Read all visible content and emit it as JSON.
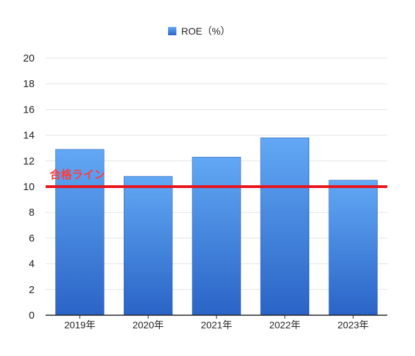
{
  "chart_data": {
    "type": "bar",
    "categories": [
      "2019年",
      "2020年",
      "2021年",
      "2022年",
      "2023年"
    ],
    "series": [
      {
        "name": "ROE（%）",
        "values": [
          12.9,
          10.8,
          12.3,
          13.8,
          10.5
        ]
      }
    ],
    "ylim": [
      0,
      20
    ],
    "yticks": [
      0,
      2,
      4,
      6,
      8,
      10,
      12,
      14,
      16,
      18,
      20
    ],
    "grid": true,
    "legend_position": "top-center",
    "reference_line": {
      "value": 10,
      "label": "合格ライン",
      "color": "#e8141c"
    },
    "colors": {
      "bar_top": "#62a8f5",
      "bar_bottom": "#2a64c6",
      "grid": "#e3e3e3"
    }
  }
}
